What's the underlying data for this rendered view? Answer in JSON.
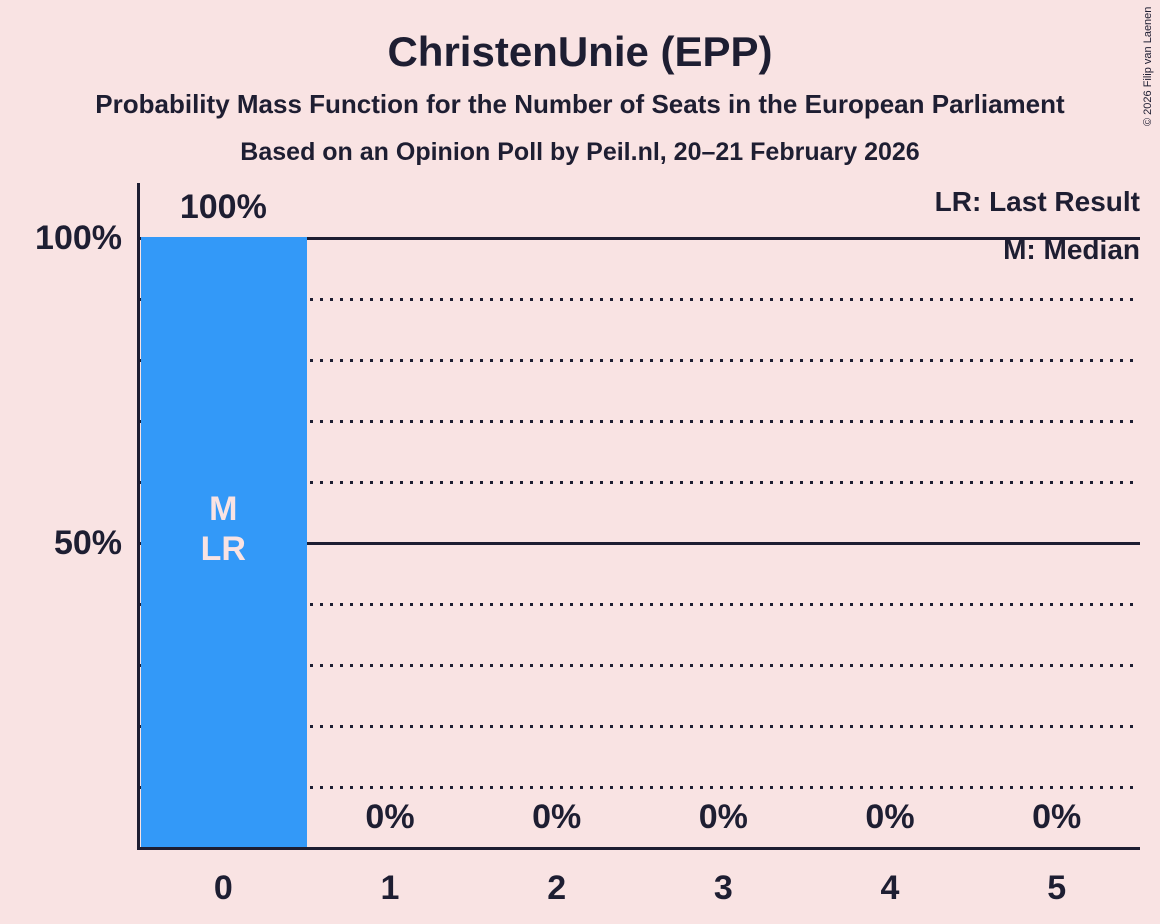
{
  "header": {
    "title": "ChristenUnie (EPP)",
    "subtitle1": "Probability Mass Function for the Number of Seats in the European Parliament",
    "subtitle2": "Based on an Opinion Poll by Peil.nl, 20–21 February 2026"
  },
  "legend": {
    "lines": [
      "LR: Last Result",
      "M: Median"
    ]
  },
  "copyright": "© 2026 Filip van Laenen",
  "colors": {
    "background": "#f9e3e3",
    "bar": "#3399f8",
    "text": "#1e1e32",
    "bar_label_text": "#f9e3e3"
  },
  "chart_data": {
    "type": "bar",
    "title": "ChristenUnie (EPP)",
    "categories": [
      "0",
      "1",
      "2",
      "3",
      "4",
      "5"
    ],
    "values": [
      100,
      0,
      0,
      0,
      0,
      0
    ],
    "value_labels": [
      "100%",
      "0%",
      "0%",
      "0%",
      "0%",
      "0%"
    ],
    "ylim": [
      0,
      100
    ],
    "yticks": [
      {
        "value": 100,
        "label": "100%"
      },
      {
        "value": 50,
        "label": "50%"
      }
    ],
    "gridlines": {
      "solid": [
        100,
        50
      ],
      "dotted": [
        90,
        80,
        70,
        60,
        40,
        30,
        20,
        10
      ]
    },
    "bar_annotations": [
      {
        "category_index": 0,
        "lines": [
          "M",
          "LR"
        ],
        "anchor_percent": 50
      }
    ],
    "legend_position": "top-right",
    "grid": "horizontal"
  }
}
